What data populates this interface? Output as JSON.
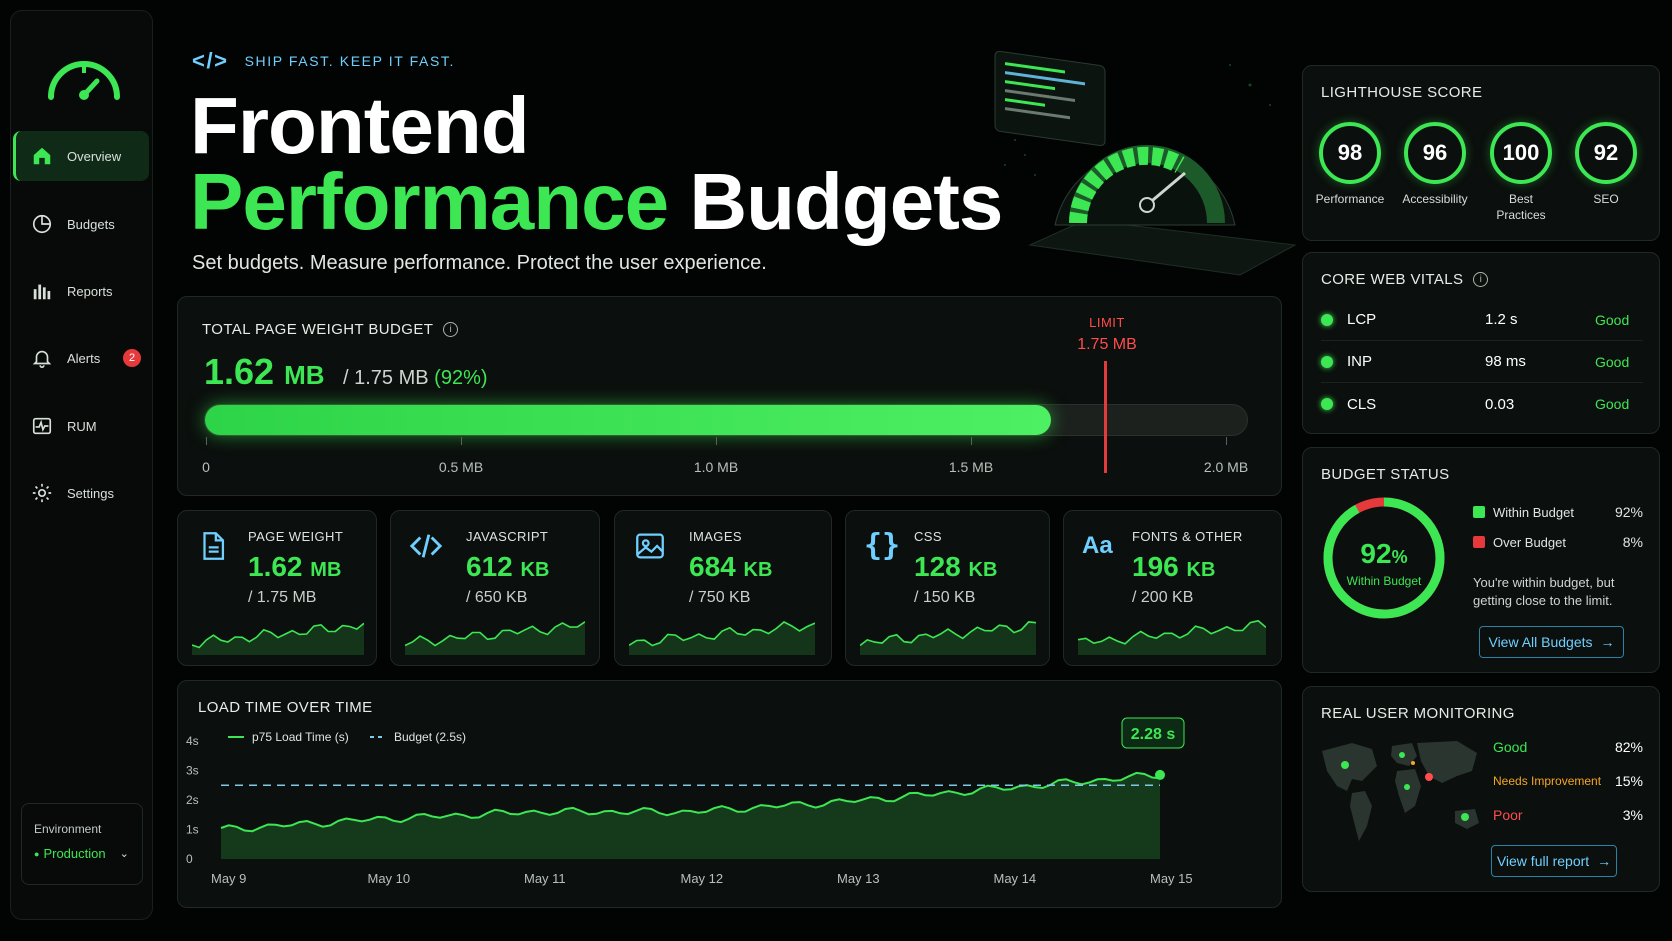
{
  "sidebar": {
    "items": [
      {
        "label": "Overview",
        "icon": "home-icon",
        "active": true
      },
      {
        "label": "Budgets",
        "icon": "pie-icon"
      },
      {
        "label": "Reports",
        "icon": "bar-chart-icon"
      },
      {
        "label": "Alerts",
        "icon": "bell-icon",
        "badge": "2"
      },
      {
        "label": "RUM",
        "icon": "pulse-icon"
      },
      {
        "label": "Settings",
        "icon": "gear-icon"
      }
    ],
    "environment": {
      "label": "Environment",
      "value": "Production"
    }
  },
  "hero": {
    "tagline": "SHIP FAST. KEEP IT FAST.",
    "title_line1": "Frontend",
    "title_word_green": "Performance",
    "title_word_white": "Budgets",
    "subtitle": "Set budgets. Measure performance. Protect the user experience."
  },
  "weight": {
    "caption": "TOTAL PAGE WEIGHT BUDGET",
    "used_value": "1.62",
    "used_unit": "MB",
    "of_text": "/ 1.75 MB",
    "pct_text": "(92%)",
    "limit_caption": "LIMIT",
    "limit_value": "1.75 MB",
    "fill_fraction": 0.81,
    "limit_fraction": 0.875,
    "ticks": [
      "0",
      "0.5 MB",
      "1.0 MB",
      "1.5 MB",
      "2.0 MB"
    ]
  },
  "resources": [
    {
      "name": "PAGE WEIGHT",
      "value": "1.62",
      "unit": "MB",
      "budget": "/ 1.75 MB",
      "icon": "document-icon"
    },
    {
      "name": "JAVASCRIPT",
      "value": "612",
      "unit": "KB",
      "budget": "/ 650 KB",
      "icon": "code-icon"
    },
    {
      "name": "IMAGES",
      "value": "684",
      "unit": "KB",
      "budget": "/ 750 KB",
      "icon": "image-icon"
    },
    {
      "name": "CSS",
      "value": "128",
      "unit": "KB",
      "budget": "/ 150 KB",
      "icon": "braces-icon"
    },
    {
      "name": "FONTS & OTHER",
      "value": "196",
      "unit": "KB",
      "budget": "/ 200 KB",
      "icon": "font-icon"
    }
  ],
  "load_chart": {
    "caption": "LOAD TIME OVER TIME",
    "legend_series": "p75 Load Time (s)",
    "legend_budget": "Budget (2.5s)",
    "callout": "2.28 s",
    "y_ticks": [
      "4s",
      "3s",
      "2s",
      "1s",
      "0"
    ],
    "x_ticks": [
      "May 9",
      "May 10",
      "May 11",
      "May 12",
      "May 13",
      "May 14",
      "May 15"
    ]
  },
  "chart_data": {
    "type": "area",
    "title": "LOAD TIME OVER TIME",
    "xlabel": "",
    "ylabel": "",
    "ylim": [
      0,
      4
    ],
    "x": [
      "May 9",
      "May 10",
      "May 11",
      "May 12",
      "May 13",
      "May 14",
      "May 15"
    ],
    "series": [
      {
        "name": "p75 Load Time (s)",
        "values": [
          1.0,
          1.35,
          1.6,
          1.6,
          1.95,
          2.4,
          2.85
        ]
      },
      {
        "name": "Budget (2.5s)",
        "values": [
          2.5,
          2.5,
          2.5,
          2.5,
          2.5,
          2.5,
          2.5
        ]
      }
    ]
  },
  "lighthouse": {
    "caption": "LIGHTHOUSE SCORE",
    "scores": [
      {
        "value": "98",
        "label": "Performance"
      },
      {
        "value": "96",
        "label": "Accessibility"
      },
      {
        "value": "100",
        "label": "Best Practices"
      },
      {
        "value": "92",
        "label": "SEO"
      }
    ]
  },
  "cwv": {
    "caption": "CORE WEB VITALS",
    "rows": [
      {
        "metric": "LCP",
        "value": "1.2 s",
        "status": "Good"
      },
      {
        "metric": "INP",
        "value": "98 ms",
        "status": "Good"
      },
      {
        "metric": "CLS",
        "value": "0.03",
        "status": "Good"
      }
    ]
  },
  "budget_status": {
    "caption": "BUDGET STATUS",
    "percent": "92",
    "percent_sign": "%",
    "percent_label": "Within Budget",
    "within_fraction": 0.92,
    "legend": [
      {
        "label": "Within Budget",
        "pct": "92%",
        "color": "#3de653"
      },
      {
        "label": "Over Budget",
        "pct": "8%",
        "color": "#e5393b"
      }
    ],
    "note": "You're within budget, but getting close to the limit.",
    "button": "View All Budgets"
  },
  "rum": {
    "caption": "REAL USER MONITORING",
    "rows": [
      {
        "label": "Good",
        "pct": "82%",
        "color": "#3de653"
      },
      {
        "label": "Needs Improvement",
        "pct": "15%",
        "color": "#f5a623"
      },
      {
        "label": "Poor",
        "pct": "3%",
        "color": "#ff4d4d"
      }
    ],
    "button": "View full report"
  }
}
